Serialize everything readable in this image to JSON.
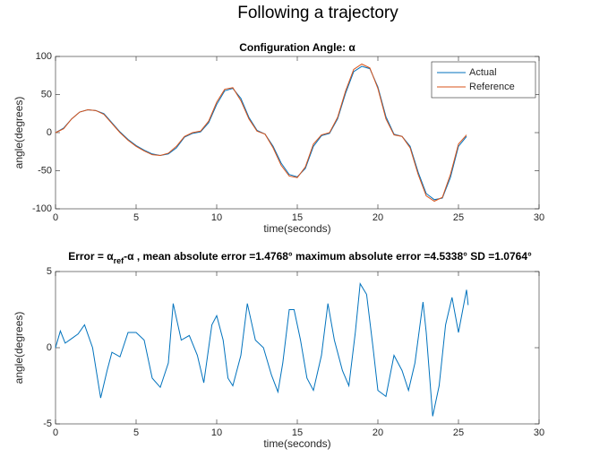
{
  "title": "Following a trajectory",
  "chart_data": [
    {
      "type": "line",
      "title": "Configuration Angle: α",
      "xlabel": "time(seconds)",
      "ylabel": "angle(degrees)",
      "x": [
        0,
        0.5,
        1,
        1.5,
        2,
        2.5,
        3,
        3.5,
        4,
        4.5,
        5,
        5.5,
        6,
        6.5,
        7,
        7.5,
        8,
        8.5,
        9,
        9.5,
        10,
        10.5,
        11,
        11.5,
        12,
        12.5,
        13,
        13.5,
        14,
        14.5,
        15,
        15.5,
        16,
        16.5,
        17,
        17.5,
        18,
        18.5,
        19,
        19.5,
        20,
        20.5,
        21,
        21.5,
        22,
        22.5,
        23,
        23.5,
        24,
        24.5,
        25,
        25.5
      ],
      "series": [
        {
          "name": "Actual",
          "color": "#0072bd",
          "values": [
            0,
            6,
            18,
            27,
            30,
            29,
            25,
            13,
            1,
            -9,
            -17,
            -23,
            -28,
            -30,
            -28,
            -20,
            -6,
            -1,
            1,
            13,
            37,
            55,
            58,
            45,
            20,
            3,
            -2,
            -18,
            -40,
            -55,
            -58,
            -47,
            -18,
            -4,
            -1,
            18,
            52,
            80,
            87,
            84,
            60,
            21,
            -2,
            -5,
            -18,
            -52,
            -80,
            -88,
            -86,
            -59,
            -18,
            -5
          ]
        },
        {
          "name": "Reference",
          "color": "#d95319",
          "values": [
            0,
            5,
            18,
            27,
            30,
            29,
            24,
            12,
            0,
            -10,
            -18,
            -24,
            -29,
            -30,
            -27,
            -18,
            -5,
            0,
            2,
            15,
            40,
            57,
            59,
            42,
            18,
            2,
            -2,
            -20,
            -43,
            -57,
            -59,
            -45,
            -15,
            -3,
            0,
            20,
            55,
            83,
            90,
            85,
            58,
            18,
            -3,
            -5,
            -20,
            -55,
            -83,
            -90,
            -85,
            -55,
            -15,
            -3
          ]
        }
      ],
      "xlim": [
        0,
        30
      ],
      "xticks": [
        0,
        5,
        10,
        15,
        20,
        25,
        30
      ],
      "ylim": [
        -100,
        100
      ],
      "yticks": [
        -100,
        -50,
        0,
        50,
        100
      ],
      "legend": "upper right"
    },
    {
      "type": "line",
      "title": [
        "Error = α",
        "ref",
        "-α , mean absolute error =1.4768° maximum absolute error =4.5338° SD =1.0764°"
      ],
      "xlabel": "time(seconds)",
      "ylabel": "angle(degrees)",
      "x": [
        0,
        0.3,
        0.6,
        1,
        1.4,
        1.8,
        2.3,
        2.8,
        3.2,
        3.5,
        4,
        4.5,
        5,
        5.5,
        6,
        6.5,
        7,
        7.3,
        7.8,
        8.3,
        8.8,
        9.2,
        9.7,
        10,
        10.4,
        10.7,
        11,
        11.5,
        11.9,
        12.4,
        12.9,
        13.4,
        13.8,
        14.1,
        14.5,
        14.8,
        15.2,
        15.6,
        16,
        16.5,
        16.9,
        17.3,
        17.8,
        18.2,
        18.6,
        18.9,
        19.3,
        19.7,
        20,
        20.5,
        21,
        21.5,
        21.9,
        22.3,
        22.8,
        23,
        23.4,
        23.8,
        24.2,
        24.6,
        25,
        25.5,
        25.6
      ],
      "series": [
        {
          "name": null,
          "color": "#0072bd",
          "values": [
            0,
            1.1,
            0.3,
            0.6,
            0.9,
            1.5,
            0,
            -3.3,
            -1.5,
            -0.3,
            -0.6,
            1,
            1,
            0.5,
            -2,
            -2.6,
            -1,
            2.9,
            0.5,
            0.8,
            -0.5,
            -2.3,
            1.5,
            2.1,
            0.5,
            -2,
            -2.5,
            -0.5,
            2.9,
            0.5,
            0,
            -1.8,
            -2.9,
            -1,
            2.5,
            2.5,
            0.5,
            -2,
            -2.8,
            -0.5,
            2.9,
            0.5,
            -1.5,
            -2.5,
            1,
            4.2,
            3.5,
            0,
            -2.8,
            -3.2,
            -0.5,
            -1.5,
            -2.8,
            -1,
            3,
            1,
            -4.5,
            -2.5,
            1.5,
            3.3,
            1,
            3.8,
            2.8
          ]
        }
      ],
      "xlim": [
        0,
        30
      ],
      "xticks": [
        0,
        5,
        10,
        15,
        20,
        25,
        30
      ],
      "ylim": [
        -5,
        5
      ],
      "yticks": [
        -5,
        0,
        5
      ]
    }
  ]
}
